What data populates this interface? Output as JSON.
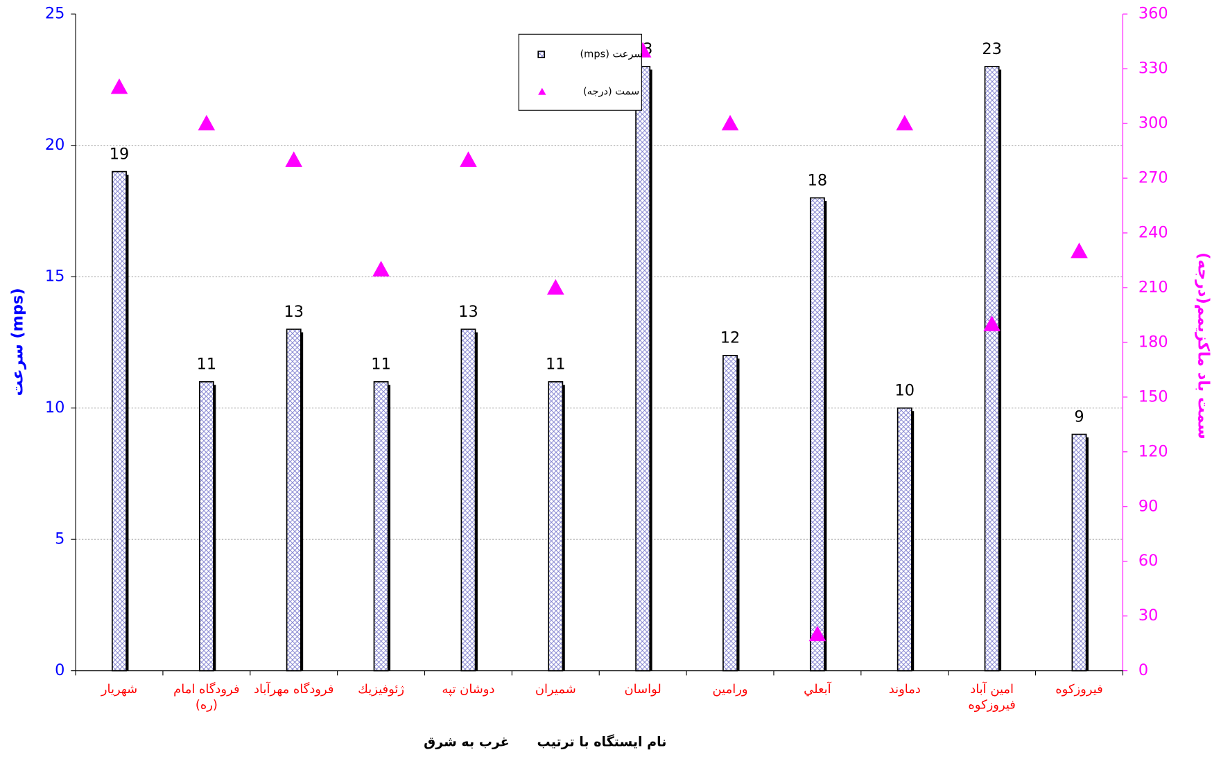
{
  "chart_data": {
    "type": "bar",
    "categories": [
      "شهريار",
      "فرودگاه امام (ره)",
      "فرودگاه مهرآباد",
      "ژئوفيزيك",
      "دوشان تپه",
      "شميران",
      "لواسان",
      "ورامين",
      "آبعلي",
      "دماوند",
      "امين آباد فيروزكوه",
      "فيروزكوه"
    ],
    "series": [
      {
        "name": "سرعت (mps)",
        "color": "#3333cc",
        "values": [
          19,
          11,
          13,
          11,
          13,
          11,
          23,
          12,
          18,
          10,
          23,
          9
        ]
      },
      {
        "name": "سمت (درجه)",
        "color": "#ff00ff",
        "axis": "y2",
        "values": [
          320,
          300,
          280,
          220,
          280,
          210,
          340,
          300,
          20,
          300,
          190,
          230
        ]
      }
    ],
    "ylabel": "سرعت (mps)",
    "y2label": "سمت باد ماكزيمم(درجه)",
    "xlabel": "نام ايستگاه با ترتيب      غرب به شرق",
    "ylim": [
      0,
      25
    ],
    "yticks": [
      0,
      5,
      10,
      15,
      20,
      25
    ],
    "y2lim": [
      0,
      360
    ],
    "y2ticks": [
      0,
      30,
      60,
      90,
      120,
      150,
      180,
      210,
      240,
      270,
      300,
      330,
      360
    ],
    "grid": true
  }
}
